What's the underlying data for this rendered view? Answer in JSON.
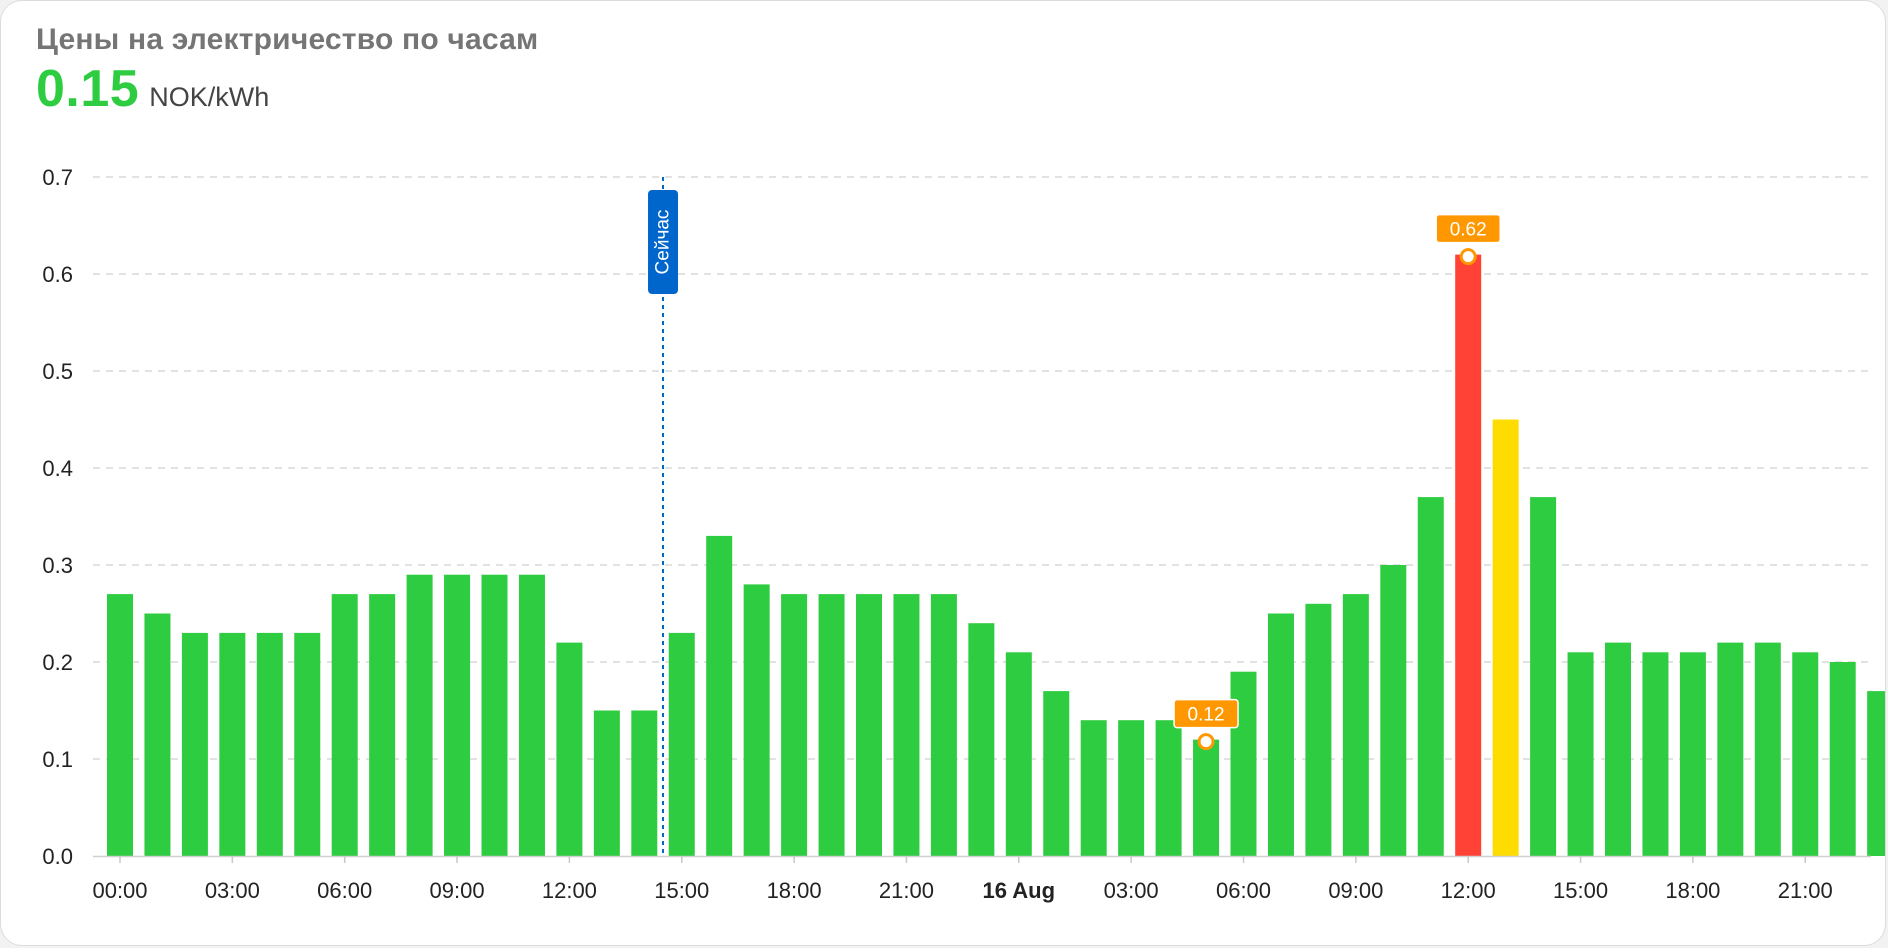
{
  "card": {
    "title": "Цены на электричество по часам",
    "current_price": "0.15",
    "unit": "NOK/kWh"
  },
  "colors": {
    "normal": "#2ecc40",
    "max": "#ff4136",
    "high": "#ffdc00",
    "annotation": "#ff9800",
    "now_line": "#0066cc",
    "grid": "#d8d8d8"
  },
  "chart_data": {
    "type": "bar",
    "title": "",
    "xlabel": "",
    "ylabel": "",
    "ylim": [
      0,
      0.7
    ],
    "y_ticks": [
      "0.0",
      "0.1",
      "0.2",
      "0.3",
      "0.4",
      "0.5",
      "0.6",
      "0.7"
    ],
    "x_ticks": [
      {
        "label": "00:00",
        "index": 0
      },
      {
        "label": "03:00",
        "index": 3
      },
      {
        "label": "06:00",
        "index": 6
      },
      {
        "label": "09:00",
        "index": 9
      },
      {
        "label": "12:00",
        "index": 12
      },
      {
        "label": "15:00",
        "index": 15
      },
      {
        "label": "18:00",
        "index": 18
      },
      {
        "label": "21:00",
        "index": 21
      },
      {
        "label": "16 Aug",
        "index": 24,
        "bold": true
      },
      {
        "label": "03:00",
        "index": 27
      },
      {
        "label": "06:00",
        "index": 30
      },
      {
        "label": "09:00",
        "index": 33
      },
      {
        "label": "12:00",
        "index": 36
      },
      {
        "label": "15:00",
        "index": 39
      },
      {
        "label": "18:00",
        "index": 42
      },
      {
        "label": "21:00",
        "index": 45
      }
    ],
    "values": [
      0.27,
      0.25,
      0.23,
      0.23,
      0.23,
      0.23,
      0.27,
      0.27,
      0.29,
      0.29,
      0.29,
      0.29,
      0.22,
      0.15,
      0.15,
      0.23,
      0.33,
      0.28,
      0.27,
      0.27,
      0.27,
      0.27,
      0.27,
      0.24,
      0.21,
      0.17,
      0.14,
      0.14,
      0.14,
      0.12,
      0.19,
      0.25,
      0.26,
      0.27,
      0.3,
      0.37,
      0.62,
      0.45,
      0.37,
      0.21,
      0.22,
      0.21,
      0.21,
      0.22,
      0.22,
      0.21,
      0.2,
      0.17
    ],
    "highlight": [
      {
        "index": 36,
        "color_key": "max"
      },
      {
        "index": 37,
        "color_key": "high"
      }
    ],
    "annotations": [
      {
        "index": 29,
        "label": "0.12"
      },
      {
        "index": 36,
        "label": "0.62"
      }
    ],
    "now_marker": {
      "position": 14.5,
      "label": "Сейчас"
    },
    "grid": true
  }
}
